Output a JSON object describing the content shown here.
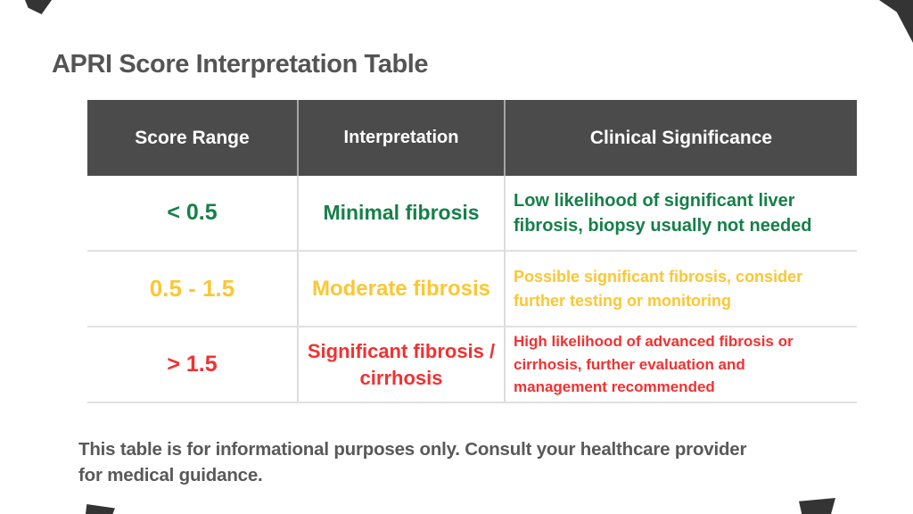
{
  "chart_data": {
    "type": "table",
    "title": "APRI Score Interpretation Table",
    "columns": [
      "Score Range",
      "Interpretation",
      "Clinical Significance"
    ],
    "rows": [
      {
        "score_range": "< 0.5",
        "interpretation": "Minimal fibrosis",
        "interpretation_lines": [
          "Minimal fibrosis"
        ],
        "clinical_significance": "Low likelihood of significant liver fibrosis, biopsy usually not needed",
        "clinical_lines": [
          "Low likelihood of significant liver",
          "fibrosis, biopsy usually not needed"
        ],
        "color_key": "green"
      },
      {
        "score_range": "0.5 - 1.5",
        "interpretation": "Moderate fibrosis",
        "interpretation_lines": [
          "Moderate fibrosis"
        ],
        "clinical_significance": "Possible significant fibrosis, consider further testing or monitoring",
        "clinical_lines": [
          "Possible significant fibrosis, consider",
          "further testing or monitoring"
        ],
        "color_key": "yellow"
      },
      {
        "score_range": "> 1.5",
        "interpretation": "Significant fibrosis / cirrhosis",
        "interpretation_lines": [
          "Significant fibrosis /",
          "cirrhosis"
        ],
        "clinical_significance": "High likelihood of advanced fibrosis or cirrhosis, further evaluation and management recommended",
        "clinical_lines": [
          "High likelihood of advanced fibrosis or",
          "cirrhosis, further evaluation and",
          "management recommended"
        ],
        "color_key": "red"
      }
    ],
    "footnote": "This table is for informational purposes only. Consult your healthcare provider for medical guidance.",
    "footnote_lines": [
      "This table is for informational purposes only. Consult your healthcare provider",
      "for medical guidance."
    ],
    "legend_position": "none",
    "grid": "row-separators"
  },
  "colors": {
    "header_bg": "#4B4B4B",
    "header_text": "#FFFFFF",
    "green": "#158049",
    "yellow": "#FBC733",
    "red": "#F23131",
    "title_text": "#545454",
    "footer_text": "#595959",
    "divider": "#DCDCDC",
    "corner_accent": "#343434"
  }
}
